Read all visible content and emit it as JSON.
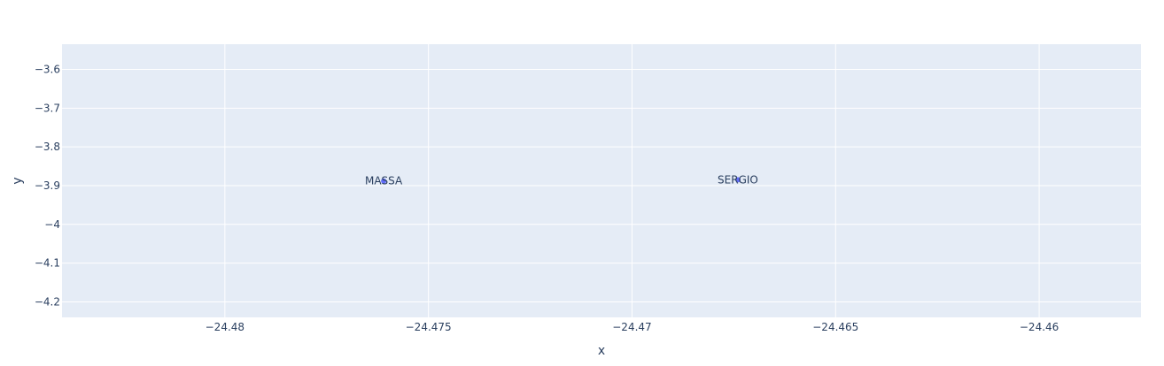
{
  "chart_data": {
    "type": "scatter",
    "xlabel": "x",
    "ylabel": "y",
    "xlim": [
      -24.484,
      -24.4575
    ],
    "ylim": [
      -4.24,
      -3.535
    ],
    "x_ticks": [
      -24.48,
      -24.475,
      -24.47,
      -24.465,
      -24.46
    ],
    "x_tick_labels": [
      "−24.48",
      "−24.475",
      "−24.47",
      "−24.465",
      "−24.46"
    ],
    "y_ticks": [
      -3.6,
      -3.7,
      -3.8,
      -3.9,
      -4,
      -4.1,
      -4.2
    ],
    "y_tick_labels": [
      "−3.6",
      "−3.7",
      "−3.8",
      "−3.9",
      "−4",
      "−4.1",
      "−4.2"
    ],
    "grid": true,
    "colors": {
      "plot_bg": "#e5ecf6",
      "grid": "#ffffff",
      "marker": "#636efa",
      "text": "#2a3f5f"
    },
    "points": [
      {
        "x": -24.4761,
        "y": -3.888,
        "label": "MASSA"
      },
      {
        "x": -24.4674,
        "y": -3.885,
        "label": "SERGIO"
      }
    ]
  }
}
